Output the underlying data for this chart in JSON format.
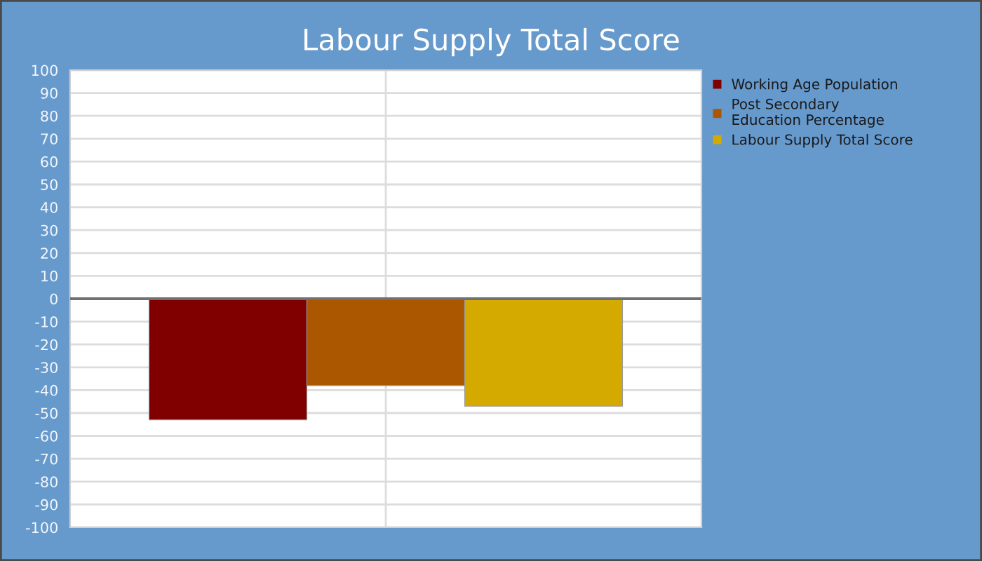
{
  "chart_data": {
    "type": "bar",
    "title": "Labour Supply Total Score",
    "categories": [
      null
    ],
    "series": [
      {
        "name": "Working Age Population",
        "color": "#800000",
        "values": [
          -53
        ]
      },
      {
        "name": "Post Secondary\nEducation Percentage",
        "color": "#ab5700",
        "values": [
          -38
        ]
      },
      {
        "name": "Labour Supply Total Score",
        "color": "#d4aa00",
        "values": [
          -47
        ]
      }
    ],
    "ylim": [
      -100,
      100
    ],
    "yticks": [
      -100,
      -90,
      -80,
      -70,
      -60,
      -50,
      -40,
      -30,
      -20,
      -10,
      0,
      10,
      20,
      30,
      40,
      50,
      60,
      70,
      80,
      90,
      100
    ],
    "ref_lines": [
      {
        "axis": "y",
        "value": 0,
        "color": "#707070"
      }
    ],
    "grid": true,
    "legend": "top right"
  }
}
